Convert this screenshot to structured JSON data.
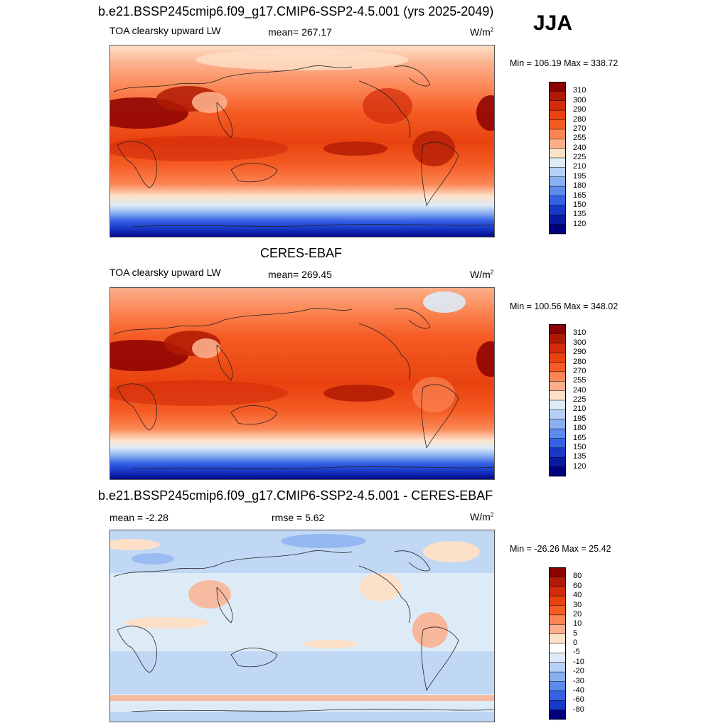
{
  "season": "JJA",
  "panels": [
    {
      "id": "model",
      "title": "b.e21.BSSP245cmip6.f09_g17.CMIP6-SSP2-4.5.001 (yrs 2025-2049)",
      "left_label": "TOA clearsky upward LW",
      "center_label": "mean= 267.17",
      "units_base": "W/m",
      "units_sup": "2",
      "minmax": "Min = 106.19 Max = 338.72",
      "colorbar_labels": [
        "310",
        "300",
        "290",
        "280",
        "270",
        "255",
        "240",
        "225",
        "210",
        "195",
        "180",
        "165",
        "150",
        "135",
        "120"
      ]
    },
    {
      "id": "obs",
      "title": "CERES-EBAF",
      "left_label": "TOA clearsky upward LW",
      "center_label": "mean= 269.45",
      "units_base": "W/m",
      "units_sup": "2",
      "minmax": "Min = 100.56 Max = 348.02",
      "colorbar_labels": [
        "310",
        "300",
        "290",
        "280",
        "270",
        "255",
        "240",
        "225",
        "210",
        "195",
        "180",
        "165",
        "150",
        "135",
        "120"
      ]
    },
    {
      "id": "diff",
      "title": "b.e21.BSSP245cmip6.f09_g17.CMIP6-SSP2-4.5.001 - CERES-EBAF",
      "left_label": "mean =  -2.28",
      "center_label": "rmse =   5.62",
      "units_base": "W/m",
      "units_sup": "2",
      "minmax": "Min = -26.26 Max =  25.42",
      "colorbar_labels": [
        "80",
        "60",
        "40",
        "30",
        "20",
        "10",
        "5",
        "0",
        "-5",
        "-10",
        "-20",
        "-30",
        "-40",
        "-60",
        "-80"
      ]
    }
  ],
  "palettes": {
    "abs": [
      "#8b0000",
      "#b01a05",
      "#d22b0a",
      "#e8420f",
      "#f55c24",
      "#fb8654",
      "#fcae8a",
      "#fde0c8",
      "#ddebf7",
      "#b5d0f4",
      "#8ab0f1",
      "#5c8bec",
      "#3562e4",
      "#1838c8",
      "#0a1aa0",
      "#00007d"
    ],
    "diff": [
      "#8b0000",
      "#b01a05",
      "#d22b0a",
      "#e8420f",
      "#f55c24",
      "#fb8654",
      "#fcae8a",
      "#fde0c8",
      "#ffffff",
      "#ddebf7",
      "#b5d0f4",
      "#8ab0f1",
      "#5c8bec",
      "#3562e4",
      "#1838c8",
      "#00007d"
    ]
  }
}
